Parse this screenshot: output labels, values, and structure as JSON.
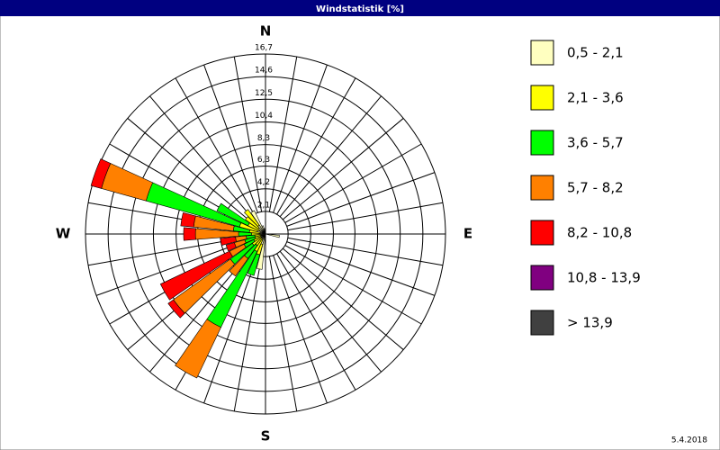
{
  "chart_data": {
    "type": "windrose",
    "title": "Windstatistik [%]",
    "annotation": "5.4.2018",
    "categories": [
      "N",
      null,
      null,
      null,
      null,
      null,
      null,
      null,
      null,
      "E",
      null,
      null,
      null,
      null,
      null,
      null,
      null,
      null,
      "S",
      null,
      null,
      null,
      null,
      null,
      null,
      null,
      null,
      "W",
      null,
      null,
      null,
      null,
      null,
      null,
      null,
      null
    ],
    "ylim": [
      0,
      16.7
    ],
    "yticks": [
      {
        "value": 2.1,
        "label": "2,1"
      },
      {
        "value": 4.2,
        "label": "4,2"
      },
      {
        "value": 6.3,
        "label": "6,3"
      },
      {
        "value": 8.3,
        "label": "8,3"
      },
      {
        "value": 10.4,
        "label": "10,4"
      },
      {
        "value": 12.5,
        "label": "12,5"
      },
      {
        "value": 14.6,
        "label": "14,6"
      },
      {
        "value": 16.7,
        "label": "16,7"
      }
    ],
    "series": [
      {
        "name": "0,5 - 2,1",
        "color": "#ffffc0",
        "values": [
          0,
          0,
          0,
          0,
          0,
          0,
          0,
          0,
          0,
          0,
          1.3,
          0,
          0,
          0,
          0,
          0,
          0,
          0,
          0,
          3.3,
          1,
          0.6,
          0.5,
          0.5,
          0.5,
          0.4,
          0.4,
          0.5,
          0.5,
          0.8,
          0.6,
          0.8,
          1,
          2.4,
          0.8,
          0.5
        ]
      },
      {
        "name": "2,1 - 3,6",
        "color": "#ffff00",
        "values": [
          0,
          0,
          0,
          0,
          0,
          0,
          0,
          0,
          0,
          0,
          0,
          0,
          0,
          0,
          0,
          0,
          0,
          0,
          0,
          0,
          1,
          1.2,
          0.8,
          1,
          0.7,
          0.6,
          0.6,
          0.8,
          1,
          1.7,
          1.2,
          1.5,
          1.8,
          0,
          0,
          0
        ]
      },
      {
        "name": "3,6 - 5,7",
        "color": "#00ff00",
        "values": [
          0,
          0,
          0,
          0,
          0,
          0,
          0,
          0,
          0,
          0,
          0,
          0,
          0,
          0,
          0,
          0,
          0,
          0,
          0,
          0,
          2,
          7.8,
          1.5,
          2.5,
          1,
          1,
          0.8,
          1.2,
          1.5,
          9,
          3.2,
          0,
          0,
          0,
          0,
          0
        ]
      },
      {
        "name": "5,7 - 8,2",
        "color": "#ff8000",
        "values": [
          0,
          0,
          0,
          0,
          0,
          0,
          0,
          0,
          0,
          0,
          0,
          0,
          0,
          0,
          0,
          0,
          0,
          0,
          0,
          0,
          0,
          5.2,
          2,
          6.5,
          1.5,
          1,
          1,
          4,
          3.7,
          4.3,
          0,
          0,
          0,
          0,
          0,
          0
        ]
      },
      {
        "name": "8,2 - 10,8",
        "color": "#ff0000",
        "values": [
          0,
          0,
          0,
          0,
          0,
          0,
          0,
          0,
          0,
          0,
          0,
          0,
          0,
          0,
          0,
          0,
          0,
          0,
          0,
          0,
          0,
          0,
          0,
          0.6,
          7.1,
          0.8,
          1.4,
          1.1,
          1.2,
          1,
          0,
          0,
          0,
          0,
          0,
          0
        ]
      },
      {
        "name": "10,8 - 13,9",
        "color": "#800080",
        "values": [
          0,
          0,
          0,
          0,
          0,
          0,
          0,
          0,
          0,
          0,
          0,
          0,
          0,
          0,
          0,
          0,
          0,
          0,
          0,
          0,
          0,
          0,
          0,
          0,
          0,
          0,
          0,
          0,
          0,
          0,
          0,
          0,
          0,
          0,
          0,
          0
        ]
      },
      {
        "name": " > 13,9",
        "color": "#404040",
        "values": [
          0,
          0,
          0,
          0,
          0,
          0,
          0,
          0,
          0,
          0,
          0,
          0,
          0,
          0,
          0,
          0,
          0,
          0,
          0,
          0,
          0,
          0,
          0,
          0,
          0,
          0,
          0,
          0,
          0,
          0,
          0,
          0,
          0,
          0,
          0,
          0
        ]
      }
    ]
  }
}
